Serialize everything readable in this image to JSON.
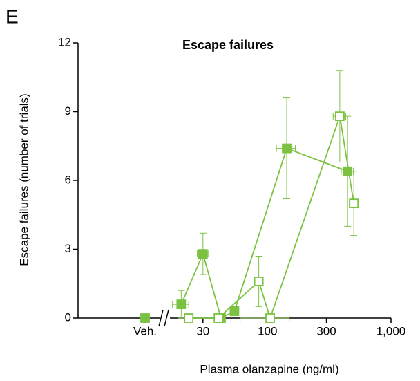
{
  "chart_data": {
    "type": "scatter",
    "panel": "E",
    "title": "Escape failures",
    "xlabel": "Plasma olanzapine (ng/ml)",
    "ylabel": "Escape failures (number of trials)",
    "log_x": true,
    "xlim": [
      15,
      1000
    ],
    "xticks": [
      30,
      100,
      300,
      {
        "value": 1000,
        "label": "1,000"
      }
    ],
    "vehicle_label": "Veh.",
    "ylim": [
      0,
      12
    ],
    "yticks": [
      0,
      3,
      6,
      9,
      12
    ],
    "series": [
      {
        "name": "filled",
        "filled": true,
        "color": "#7cc242",
        "vehicle": 0,
        "x": [
          20,
          30,
          42,
          54,
          143,
          445
        ],
        "values": [
          0.6,
          2.8,
          0,
          0.3,
          7.4,
          6.4
        ],
        "errors": [
          0.6,
          0.9,
          0,
          0.2,
          2.2,
          2.4
        ],
        "xerrors": [
          3,
          3,
          0,
          0,
          25,
          50
        ]
      },
      {
        "name": "open",
        "filled": false,
        "color": "#7cc242",
        "x": [
          23,
          40,
          85,
          105,
          385,
          500
        ],
        "values": [
          0,
          0,
          1.6,
          0,
          8.8,
          5.0
        ],
        "errors": [
          0,
          0,
          1.1,
          0,
          2.0,
          1.4
        ],
        "xerrors": [
          0,
          0,
          0,
          45,
          45,
          40
        ]
      }
    ]
  }
}
